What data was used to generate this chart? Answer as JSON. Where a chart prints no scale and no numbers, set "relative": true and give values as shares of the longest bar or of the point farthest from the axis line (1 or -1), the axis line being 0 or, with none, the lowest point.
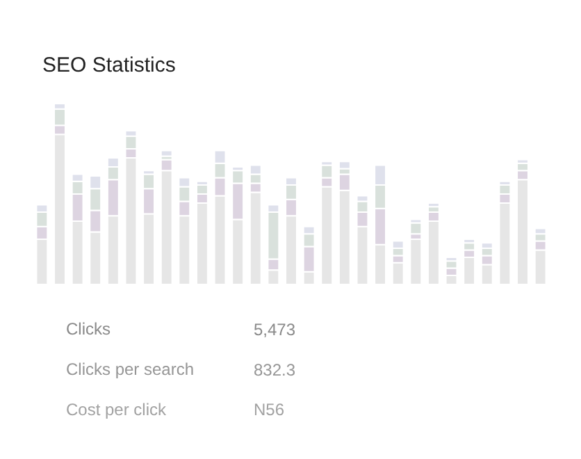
{
  "chart_data": {
    "type": "bar",
    "title": "SEO Statistics",
    "relative": true,
    "stacked": true,
    "grid": false,
    "categories": [
      null,
      null,
      null,
      null,
      null,
      null,
      null,
      null,
      null,
      null,
      null,
      null,
      null,
      null,
      null,
      null,
      null,
      null,
      null,
      null,
      null,
      null,
      null,
      null,
      null,
      null,
      null,
      null,
      null
    ],
    "series": [
      {
        "color": "#e6e6e6",
        "values": [
          0.25,
          0.83,
          0.35,
          0.29,
          0.38,
          0.7,
          0.39,
          0.63,
          0.38,
          0.45,
          0.49,
          0.36,
          0.51,
          0.08,
          0.38,
          0.07,
          0.54,
          0.52,
          0.32,
          0.22,
          0.12,
          0.25,
          0.35,
          0.05,
          0.15,
          0.11,
          0.45,
          0.58,
          0.19
        ]
      },
      {
        "color": "#ddd4e1",
        "values": [
          0.07,
          0.05,
          0.15,
          0.12,
          0.2,
          0.05,
          0.14,
          0.06,
          0.08,
          0.05,
          0.1,
          0.2,
          0.05,
          0.06,
          0.09,
          0.14,
          0.05,
          0.09,
          0.08,
          0.2,
          0.04,
          0.03,
          0.05,
          0.04,
          0.04,
          0.05,
          0.05,
          0.05,
          0.05
        ]
      },
      {
        "color": "#d9e1dc",
        "values": [
          0.08,
          0.09,
          0.07,
          0.12,
          0.07,
          0.07,
          0.08,
          0.02,
          0.08,
          0.05,
          0.08,
          0.07,
          0.05,
          0.26,
          0.08,
          0.07,
          0.07,
          0.03,
          0.06,
          0.13,
          0.04,
          0.06,
          0.03,
          0.04,
          0.04,
          0.04,
          0.05,
          0.04,
          0.04
        ]
      },
      {
        "color": "#dfe1ec",
        "values": [
          0.04,
          0.03,
          0.04,
          0.07,
          0.05,
          0.03,
          0.02,
          0.03,
          0.05,
          0.02,
          0.07,
          0.02,
          0.05,
          0.04,
          0.04,
          0.04,
          0.02,
          0.04,
          0.03,
          0.11,
          0.04,
          0.02,
          0.02,
          0.02,
          0.02,
          0.03,
          0.02,
          0.02,
          0.03
        ]
      }
    ],
    "annotations": [
      "Clicks",
      "5,473",
      "Clicks per search",
      "832.3",
      "Cost per click",
      "N56"
    ]
  }
}
